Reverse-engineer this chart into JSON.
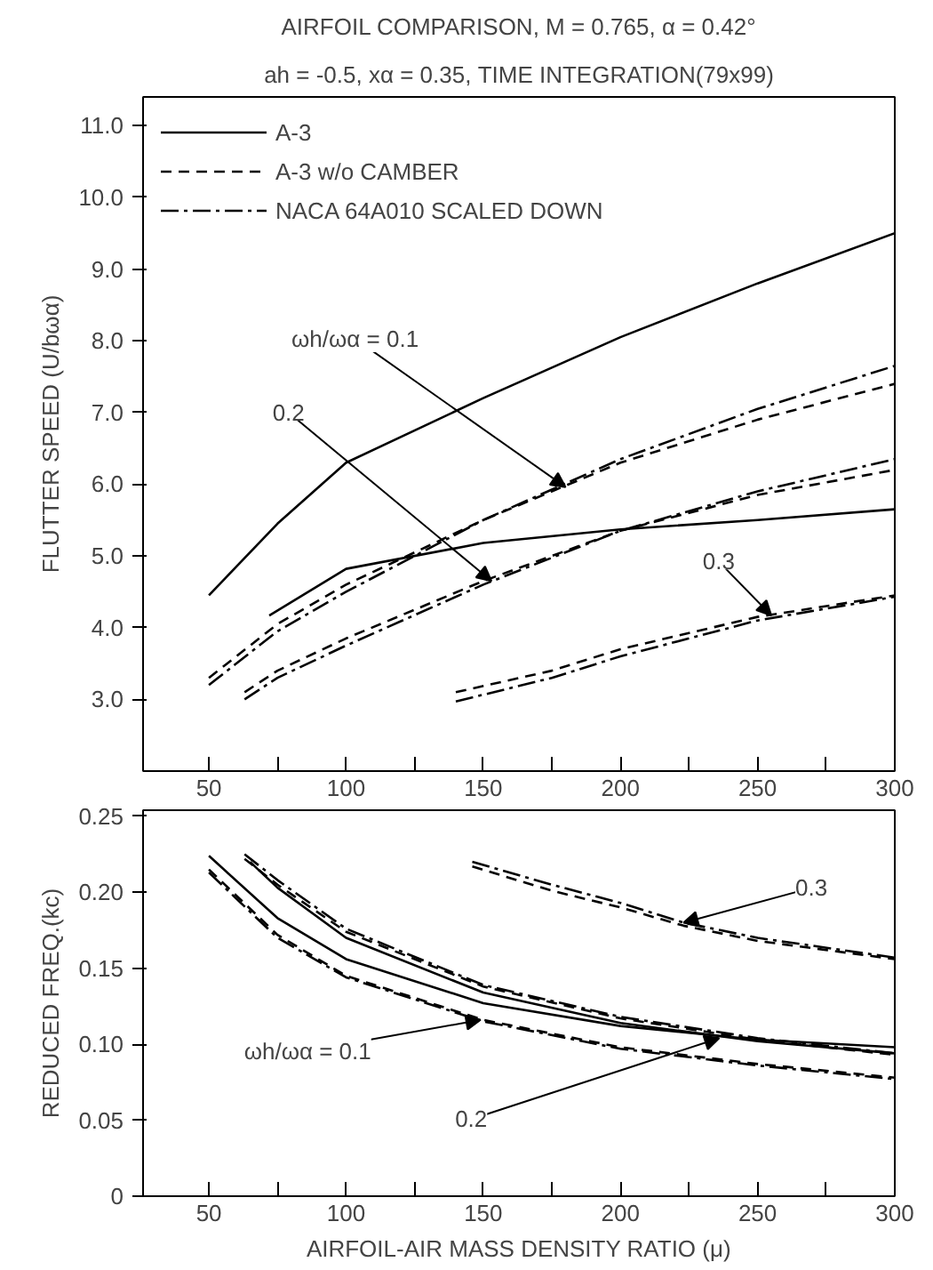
{
  "chart_data": [
    {
      "type": "line",
      "title": "AIRFOIL COMPARISON, M = 0.765, α = 0.42°",
      "subtitle": "ah = -0.5, xα = 0.35, TIME INTEGRATION(79x99)",
      "ylabel": "FLUTTER SPEED (U/bωα)",
      "xlim": [
        26,
        300
      ],
      "xticks": [
        50,
        {
          "value": 75,
          "label": null
        },
        100,
        {
          "value": 125,
          "label": null
        },
        150,
        {
          "value": 175,
          "label": null
        },
        200,
        {
          "value": 225,
          "label": null
        },
        250,
        {
          "value": 275,
          "label": null
        },
        300
      ],
      "ylim": [
        2.0,
        11.4
      ],
      "yticks": [
        {
          "value": 3,
          "label": "3.0"
        },
        {
          "value": 4,
          "label": "4.0"
        },
        {
          "value": 5,
          "label": "5.0"
        },
        {
          "value": 6,
          "label": "6.0"
        },
        {
          "value": 7,
          "label": "7.0"
        },
        {
          "value": 8,
          "label": "8.0"
        },
        {
          "value": 9,
          "label": "9.0"
        },
        {
          "value": 10,
          "label": "10.0"
        },
        {
          "value": 11,
          "label": "11.0"
        }
      ],
      "legend": "top left",
      "grid": false,
      "marker": "none",
      "series": [
        {
          "name": "A-3",
          "color": "#000000",
          "line_style": "solid",
          "x": [
            50,
            75,
            100,
            150,
            200,
            250,
            300
          ],
          "values": [
            4.45,
            5.45,
            6.3,
            7.2,
            8.05,
            8.8,
            9.5
          ]
        },
        {
          "name": "A-3 w/o CAMBER",
          "color": "#000000",
          "line_style": "dashed",
          "x": [
            50,
            75,
            100,
            150,
            200,
            250,
            300
          ],
          "values": [
            3.3,
            4.05,
            4.6,
            5.5,
            6.3,
            6.9,
            7.4
          ]
        },
        {
          "name": "NACA 64A010 SCALED DOWN",
          "color": "#000000",
          "line_style": "dashdot",
          "x": [
            50,
            75,
            100,
            150,
            200,
            250,
            300
          ],
          "values": [
            3.2,
            3.95,
            4.5,
            5.5,
            6.35,
            7.05,
            7.65
          ]
        },
        {
          "color": "#000000",
          "line_style": "solid",
          "x": [
            72,
            100,
            150,
            200,
            250,
            300
          ],
          "values": [
            4.17,
            4.82,
            5.18,
            5.37,
            5.5,
            5.65
          ]
        },
        {
          "color": "#000000",
          "line_style": "dashed",
          "x": [
            63,
            75,
            100,
            150,
            200,
            250,
            300
          ],
          "values": [
            3.1,
            3.4,
            3.85,
            4.65,
            5.35,
            5.85,
            6.2
          ]
        },
        {
          "color": "#000000",
          "line_style": "dashdot",
          "x": [
            63,
            75,
            100,
            150,
            200,
            250,
            300
          ],
          "values": [
            3.0,
            3.3,
            3.75,
            4.6,
            5.35,
            5.9,
            6.35
          ]
        },
        {
          "color": "#000000",
          "line_style": "dashed",
          "x": [
            140,
            175,
            200,
            250,
            300
          ],
          "values": [
            3.1,
            3.4,
            3.7,
            4.15,
            4.45
          ]
        },
        {
          "color": "#000000",
          "line_style": "dashdot",
          "x": [
            140,
            175,
            200,
            250,
            300
          ],
          "values": [
            2.97,
            3.3,
            3.6,
            4.1,
            4.43
          ]
        }
      ],
      "annotations": [
        {
          "text": "ωh/ωα = 0.1",
          "x": 180,
          "y": 5.96
        },
        {
          "text": "0.2",
          "x": 153,
          "y": 4.65
        },
        {
          "text": "0.3",
          "x": 255,
          "y": 4.17
        }
      ]
    },
    {
      "type": "line",
      "xlabel": "AIRFOIL-AIR MASS DENSITY RATIO (μ)",
      "ylabel": "REDUCED FREQ.(kc)",
      "xlim": [
        26,
        300
      ],
      "xticks": [
        50,
        {
          "value": 75,
          "label": null
        },
        100,
        {
          "value": 125,
          "label": null
        },
        150,
        {
          "value": 175,
          "label": null
        },
        200,
        {
          "value": 225,
          "label": null
        },
        250,
        {
          "value": 275,
          "label": null
        },
        300
      ],
      "ylim": [
        0,
        0.254
      ],
      "yticks": [
        0,
        0.05,
        {
          "value": 0.1,
          "label": "0.10"
        },
        0.15,
        {
          "value": 0.2,
          "label": "0.20"
        },
        0.25
      ],
      "grid": false,
      "marker": "none",
      "series": [
        {
          "color": "#000000",
          "line_style": "solid",
          "x": [
            50,
            75,
            100,
            150,
            200,
            250,
            300
          ],
          "values": [
            0.224,
            0.183,
            0.156,
            0.127,
            0.112,
            0.103,
            0.098
          ]
        },
        {
          "color": "#000000",
          "line_style": "dashed",
          "x": [
            50,
            75,
            100,
            150,
            200,
            250,
            300
          ],
          "values": [
            0.215,
            0.172,
            0.145,
            0.116,
            0.098,
            0.087,
            0.078
          ]
        },
        {
          "color": "#000000",
          "line_style": "dashdot",
          "x": [
            50,
            75,
            100,
            150,
            200,
            250,
            300
          ],
          "values": [
            0.213,
            0.17,
            0.144,
            0.115,
            0.097,
            0.086,
            0.077
          ]
        },
        {
          "color": "#000000",
          "line_style": "solid",
          "x": [
            65,
            75,
            100,
            150,
            200,
            250,
            300
          ],
          "values": [
            0.22,
            0.203,
            0.17,
            0.134,
            0.114,
            0.102,
            0.094
          ]
        },
        {
          "color": "#000000",
          "line_style": "dashed",
          "x": [
            63,
            75,
            100,
            150,
            200,
            250,
            300
          ],
          "values": [
            0.222,
            0.205,
            0.174,
            0.138,
            0.117,
            0.103,
            0.093
          ]
        },
        {
          "color": "#000000",
          "line_style": "dashdot",
          "x": [
            63,
            75,
            100,
            150,
            200,
            250,
            300
          ],
          "values": [
            0.225,
            0.208,
            0.176,
            0.139,
            0.118,
            0.104,
            0.094
          ]
        },
        {
          "color": "#000000",
          "line_style": "dashed",
          "x": [
            146,
            175,
            200,
            223,
            250,
            300
          ],
          "values": [
            0.217,
            0.201,
            0.19,
            0.178,
            0.168,
            0.156
          ]
        },
        {
          "color": "#000000",
          "line_style": "dashdot",
          "x": [
            146,
            175,
            200,
            223,
            250,
            300
          ],
          "values": [
            0.22,
            0.205,
            0.193,
            0.18,
            0.17,
            0.157
          ]
        }
      ],
      "annotations": [
        {
          "text": "ωh/ωα = 0.1",
          "x": 149,
          "y": 0.116
        },
        {
          "text": "0.2",
          "x": 236,
          "y": 0.104
        },
        {
          "text": "0.3",
          "x": 223,
          "y": 0.18
        }
      ]
    }
  ]
}
